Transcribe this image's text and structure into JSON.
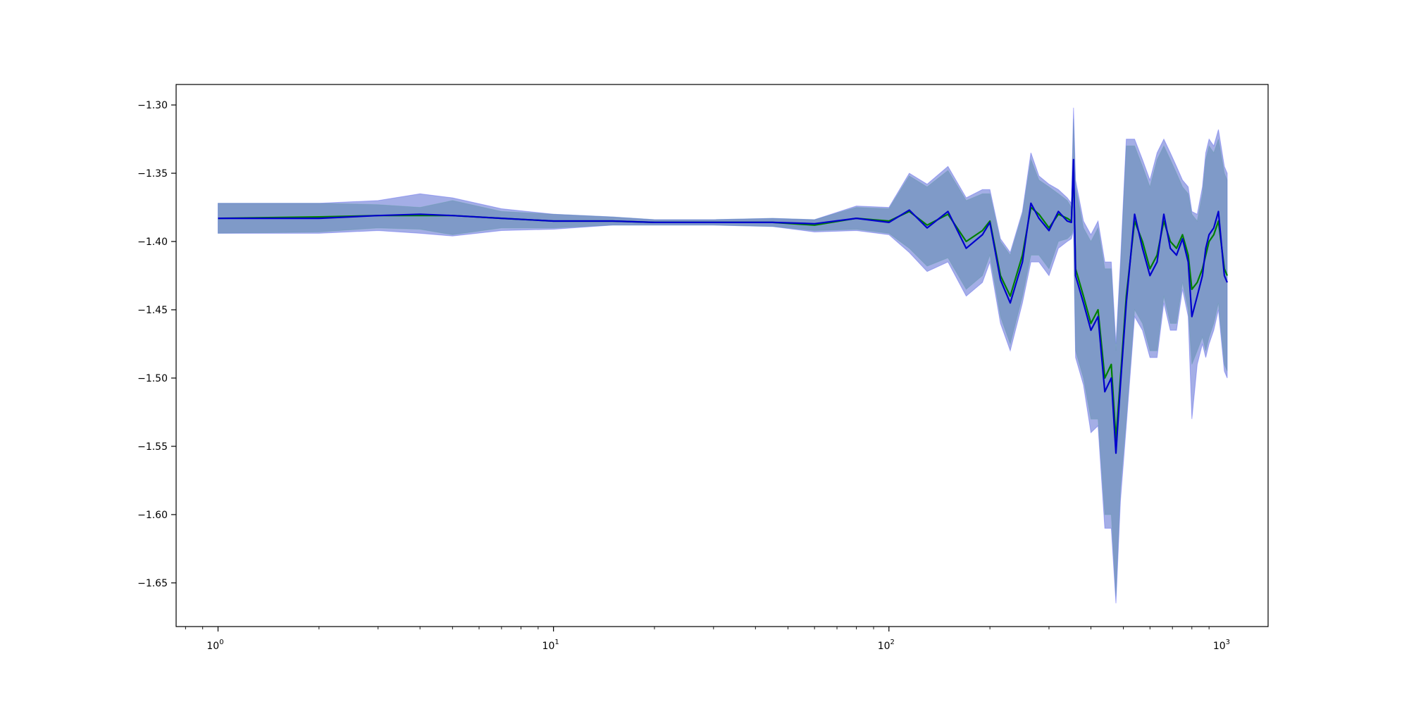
{
  "chart_data": {
    "type": "line",
    "title": "",
    "xlabel": "",
    "ylabel": "",
    "xscale": "log",
    "xlim": [
      0.75,
      1350
    ],
    "ylim": [
      -1.682,
      -1.285
    ],
    "grid": false,
    "legend": "none",
    "x_ticks": [
      {
        "value": 1,
        "base": "10",
        "exp": "0"
      },
      {
        "value": 10,
        "base": "10",
        "exp": "1"
      },
      {
        "value": 100,
        "base": "10",
        "exp": "2"
      },
      {
        "value": 1000,
        "base": "10",
        "exp": "3"
      }
    ],
    "y_ticks": [
      {
        "value": -1.3,
        "label": "−1.30"
      },
      {
        "value": -1.35,
        "label": "−1.35"
      },
      {
        "value": -1.4,
        "label": "−1.40"
      },
      {
        "value": -1.45,
        "label": "−1.45"
      },
      {
        "value": -1.5,
        "label": "−1.50"
      },
      {
        "value": -1.55,
        "label": "−1.55"
      },
      {
        "value": -1.6,
        "label": "−1.60"
      },
      {
        "value": -1.65,
        "label": "−1.65"
      }
    ],
    "series": [
      {
        "color": "#008000",
        "band_color": "#90ee90",
        "x": [
          1,
          2,
          3,
          4,
          5,
          7,
          10,
          15,
          20,
          30,
          45,
          60,
          80,
          100,
          115,
          130,
          150,
          170,
          190,
          200,
          215,
          230,
          250,
          265,
          280,
          300,
          320,
          340,
          350,
          355,
          360,
          380,
          400,
          420,
          440,
          460,
          475,
          490,
          510,
          540,
          570,
          600,
          630,
          660,
          690,
          720,
          750,
          780,
          800,
          830,
          860,
          880,
          900,
          930,
          960,
          1000,
          1020
        ],
        "y": [
          -1.383,
          -1.382,
          -1.381,
          -1.381,
          -1.381,
          -1.383,
          -1.385,
          -1.385,
          -1.386,
          -1.386,
          -1.386,
          -1.388,
          -1.383,
          -1.385,
          -1.378,
          -1.388,
          -1.38,
          -1.4,
          -1.392,
          -1.385,
          -1.425,
          -1.44,
          -1.41,
          -1.375,
          -1.38,
          -1.39,
          -1.38,
          -1.383,
          -1.385,
          -1.345,
          -1.42,
          -1.44,
          -1.46,
          -1.45,
          -1.5,
          -1.49,
          -1.545,
          -1.5,
          -1.44,
          -1.385,
          -1.4,
          -1.42,
          -1.41,
          -1.385,
          -1.4,
          -1.405,
          -1.395,
          -1.41,
          -1.435,
          -1.43,
          -1.42,
          -1.41,
          -1.4,
          -1.395,
          -1.385,
          -1.42,
          -1.425
        ],
        "upper": [
          -1.372,
          -1.372,
          -1.373,
          -1.375,
          -1.37,
          -1.378,
          -1.38,
          -1.382,
          -1.384,
          -1.384,
          -1.383,
          -1.384,
          -1.375,
          -1.376,
          -1.352,
          -1.36,
          -1.348,
          -1.37,
          -1.365,
          -1.365,
          -1.4,
          -1.41,
          -1.38,
          -1.34,
          -1.355,
          -1.36,
          -1.365,
          -1.37,
          -1.375,
          -1.31,
          -1.36,
          -1.39,
          -1.4,
          -1.39,
          -1.42,
          -1.42,
          -1.48,
          -1.42,
          -1.33,
          -1.33,
          -1.345,
          -1.36,
          -1.34,
          -1.33,
          -1.34,
          -1.35,
          -1.36,
          -1.365,
          -1.38,
          -1.385,
          -1.365,
          -1.34,
          -1.33,
          -1.335,
          -1.325,
          -1.35,
          -1.355
        ],
        "lower": [
          -1.394,
          -1.393,
          -1.39,
          -1.391,
          -1.395,
          -1.39,
          -1.39,
          -1.388,
          -1.388,
          -1.388,
          -1.389,
          -1.392,
          -1.391,
          -1.394,
          -1.405,
          -1.418,
          -1.412,
          -1.435,
          -1.425,
          -1.41,
          -1.455,
          -1.475,
          -1.44,
          -1.41,
          -1.41,
          -1.42,
          -1.4,
          -1.398,
          -1.395,
          -1.39,
          -1.48,
          -1.5,
          -1.53,
          -1.53,
          -1.6,
          -1.6,
          -1.66,
          -1.58,
          -1.53,
          -1.45,
          -1.46,
          -1.48,
          -1.48,
          -1.44,
          -1.46,
          -1.46,
          -1.43,
          -1.45,
          -1.49,
          -1.48,
          -1.47,
          -1.48,
          -1.47,
          -1.46,
          -1.445,
          -1.49,
          -1.495
        ]
      },
      {
        "color": "#0000cd",
        "band_color": "#8080ff",
        "x": [
          1,
          2,
          3,
          4,
          5,
          7,
          10,
          15,
          20,
          30,
          45,
          60,
          80,
          100,
          115,
          130,
          150,
          170,
          190,
          200,
          215,
          230,
          250,
          265,
          280,
          300,
          320,
          340,
          350,
          355,
          360,
          380,
          400,
          420,
          440,
          460,
          475,
          490,
          510,
          540,
          570,
          600,
          630,
          660,
          690,
          720,
          750,
          780,
          800,
          830,
          860,
          880,
          900,
          930,
          960,
          1000,
          1020
        ],
        "y": [
          -1.383,
          -1.383,
          -1.381,
          -1.38,
          -1.381,
          -1.383,
          -1.385,
          -1.385,
          -1.386,
          -1.386,
          -1.386,
          -1.387,
          -1.383,
          -1.386,
          -1.377,
          -1.39,
          -1.378,
          -1.405,
          -1.395,
          -1.386,
          -1.428,
          -1.445,
          -1.415,
          -1.372,
          -1.383,
          -1.392,
          -1.378,
          -1.385,
          -1.386,
          -1.34,
          -1.425,
          -1.445,
          -1.465,
          -1.455,
          -1.51,
          -1.5,
          -1.555,
          -1.505,
          -1.445,
          -1.38,
          -1.405,
          -1.425,
          -1.415,
          -1.38,
          -1.405,
          -1.41,
          -1.398,
          -1.415,
          -1.455,
          -1.44,
          -1.425,
          -1.405,
          -1.395,
          -1.39,
          -1.378,
          -1.425,
          -1.43
        ],
        "upper": [
          -1.372,
          -1.372,
          -1.37,
          -1.365,
          -1.368,
          -1.376,
          -1.38,
          -1.382,
          -1.384,
          -1.384,
          -1.383,
          -1.384,
          -1.374,
          -1.375,
          -1.35,
          -1.358,
          -1.345,
          -1.368,
          -1.362,
          -1.362,
          -1.398,
          -1.408,
          -1.378,
          -1.335,
          -1.352,
          -1.358,
          -1.362,
          -1.368,
          -1.372,
          -1.302,
          -1.355,
          -1.385,
          -1.395,
          -1.385,
          -1.415,
          -1.415,
          -1.475,
          -1.415,
          -1.325,
          -1.325,
          -1.34,
          -1.355,
          -1.335,
          -1.325,
          -1.335,
          -1.345,
          -1.355,
          -1.36,
          -1.378,
          -1.38,
          -1.36,
          -1.335,
          -1.325,
          -1.33,
          -1.318,
          -1.345,
          -1.35
        ],
        "lower": [
          -1.394,
          -1.394,
          -1.392,
          -1.394,
          -1.396,
          -1.392,
          -1.391,
          -1.388,
          -1.388,
          -1.388,
          -1.389,
          -1.393,
          -1.392,
          -1.395,
          -1.408,
          -1.422,
          -1.415,
          -1.44,
          -1.43,
          -1.415,
          -1.46,
          -1.48,
          -1.445,
          -1.415,
          -1.415,
          -1.425,
          -1.405,
          -1.4,
          -1.398,
          -1.392,
          -1.485,
          -1.505,
          -1.54,
          -1.535,
          -1.61,
          -1.61,
          -1.665,
          -1.59,
          -1.535,
          -1.455,
          -1.465,
          -1.485,
          -1.485,
          -1.445,
          -1.465,
          -1.465,
          -1.435,
          -1.455,
          -1.53,
          -1.49,
          -1.475,
          -1.485,
          -1.475,
          -1.465,
          -1.45,
          -1.495,
          -1.5
        ]
      }
    ]
  }
}
